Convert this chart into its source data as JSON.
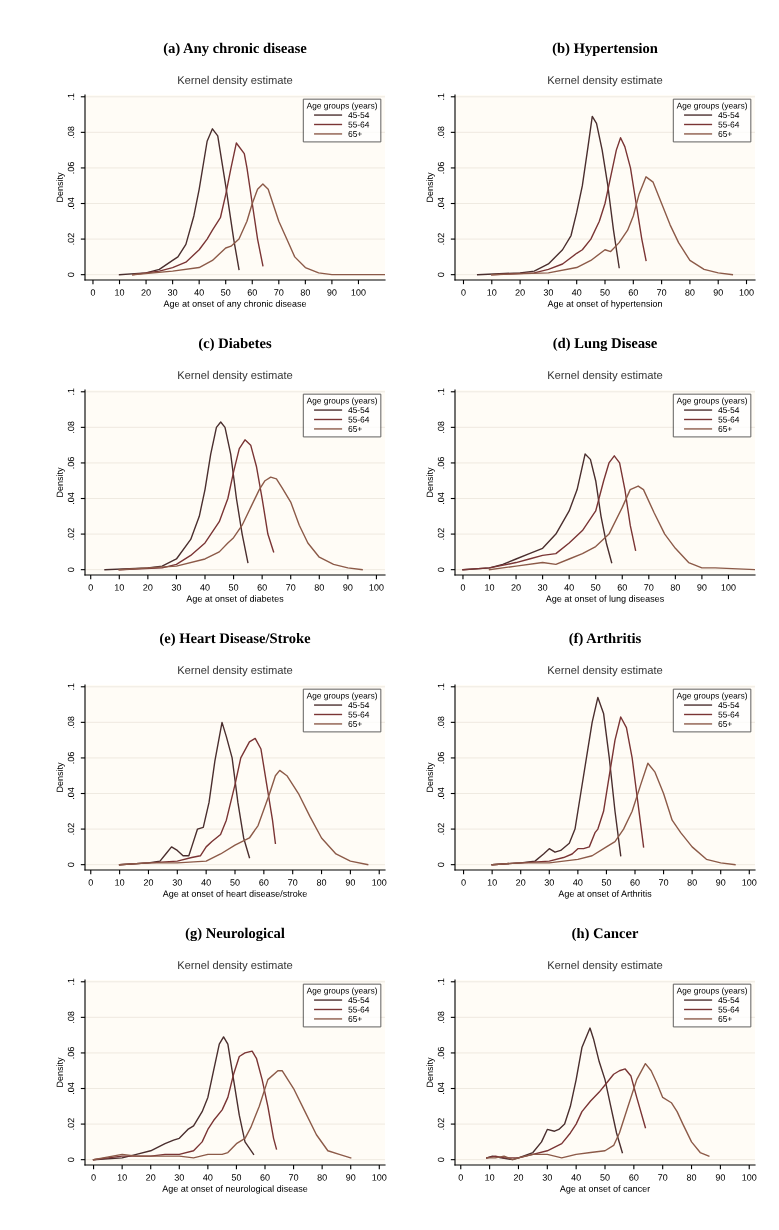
{
  "chart_data": [
    {
      "type": "line",
      "title": "(a) Any chronic disease",
      "subtitle": "Kernel density estimate",
      "xlabel": "Age at onset of any chronic disease",
      "ylabel": "Density",
      "legend_title": "Age groups (years)",
      "legend": "top right",
      "grid": "y",
      "xlim": [
        -3,
        110
      ],
      "xticks": [
        0,
        10,
        20,
        30,
        40,
        50,
        60,
        70,
        80,
        90,
        100
      ],
      "ylim": [
        -0.003,
        0.101
      ],
      "yticks": [
        0,
        {
          "value": 0.02,
          "label": ".02"
        },
        {
          "value": 0.04,
          "label": ".04"
        },
        {
          "value": 0.06,
          "label": ".06"
        },
        {
          "value": 0.08,
          "label": ".08"
        },
        {
          "value": 0.1,
          "label": ".1"
        }
      ],
      "series": [
        {
          "name": "45-54",
          "color": "#4a2e2e",
          "x": [
            10,
            20,
            25,
            30,
            32,
            35,
            38,
            40,
            43,
            45,
            47,
            50,
            53,
            55
          ],
          "values": [
            0,
            0.001,
            0.003,
            0.008,
            0.01,
            0.017,
            0.033,
            0.048,
            0.075,
            0.082,
            0.078,
            0.05,
            0.02,
            0.003
          ]
        },
        {
          "name": "55-64",
          "color": "#7a3434",
          "x": [
            15,
            25,
            30,
            35,
            40,
            43,
            45,
            48,
            50,
            52,
            54,
            57,
            58,
            60,
            62,
            64
          ],
          "values": [
            0,
            0.002,
            0.004,
            0.007,
            0.014,
            0.02,
            0.025,
            0.032,
            0.045,
            0.06,
            0.074,
            0.068,
            0.06,
            0.04,
            0.02,
            0.005
          ]
        },
        {
          "name": "65+",
          "color": "#8c5a48",
          "x": [
            15,
            30,
            40,
            45,
            50,
            52,
            55,
            58,
            60,
            62,
            64,
            66,
            70,
            73,
            76,
            80,
            85,
            90,
            110
          ],
          "values": [
            0,
            0.002,
            0.004,
            0.008,
            0.015,
            0.016,
            0.02,
            0.03,
            0.04,
            0.048,
            0.051,
            0.048,
            0.03,
            0.02,
            0.01,
            0.004,
            0.001,
            0,
            0
          ]
        }
      ]
    },
    {
      "type": "line",
      "title": "(b) Hypertension",
      "subtitle": "Kernel density estimate",
      "xlabel": "Age at onset of hypertension",
      "ylabel": "Density",
      "legend_title": "Age groups (years)",
      "legend": "top right",
      "grid": "y",
      "xlim": [
        -3,
        103
      ],
      "xticks": [
        0,
        10,
        20,
        30,
        40,
        50,
        60,
        70,
        80,
        90,
        100
      ],
      "ylim": [
        -0.003,
        0.101
      ],
      "yticks": [
        0,
        {
          "value": 0.02,
          "label": ".02"
        },
        {
          "value": 0.04,
          "label": ".04"
        },
        {
          "value": 0.06,
          "label": ".06"
        },
        {
          "value": 0.08,
          "label": ".08"
        },
        {
          "value": 0.1,
          "label": ".1"
        }
      ],
      "series": [
        {
          "name": "45-54",
          "color": "#4a2e2e",
          "x": [
            5,
            20,
            25,
            30,
            35,
            38,
            40,
            42,
            44,
            45.5,
            47,
            49,
            51,
            53,
            55
          ],
          "values": [
            0,
            0.001,
            0.002,
            0.006,
            0.014,
            0.022,
            0.035,
            0.05,
            0.072,
            0.089,
            0.085,
            0.07,
            0.05,
            0.025,
            0.004
          ]
        },
        {
          "name": "55-64",
          "color": "#7a3434",
          "x": [
            10,
            25,
            30,
            35,
            40,
            42,
            45,
            48,
            50,
            52,
            54,
            55.5,
            57,
            59,
            61,
            63,
            64.5
          ],
          "values": [
            0,
            0.001,
            0.003,
            0.006,
            0.012,
            0.014,
            0.02,
            0.03,
            0.04,
            0.055,
            0.07,
            0.077,
            0.072,
            0.06,
            0.04,
            0.02,
            0.008
          ]
        },
        {
          "name": "65+",
          "color": "#8c5a48",
          "x": [
            10,
            30,
            40,
            45,
            50,
            52,
            55,
            58,
            60,
            62,
            64.5,
            67,
            70,
            73,
            76,
            80,
            85,
            90,
            95
          ],
          "values": [
            0,
            0.001,
            0.004,
            0.008,
            0.014,
            0.013,
            0.018,
            0.025,
            0.033,
            0.045,
            0.055,
            0.052,
            0.04,
            0.028,
            0.018,
            0.008,
            0.003,
            0.001,
            0
          ]
        }
      ]
    },
    {
      "type": "line",
      "title": "(c) Diabetes",
      "subtitle": "Kernel density estimate",
      "xlabel": "Age at onset of diabetes",
      "ylabel": "Density",
      "legend_title": "Age groups (years)",
      "legend": "top right",
      "grid": "y",
      "xlim": [
        -2,
        103
      ],
      "xticks": [
        0,
        10,
        20,
        30,
        40,
        50,
        60,
        70,
        80,
        90,
        100
      ],
      "ylim": [
        -0.003,
        0.101
      ],
      "yticks": [
        0,
        {
          "value": 0.02,
          "label": ".02"
        },
        {
          "value": 0.04,
          "label": ".04"
        },
        {
          "value": 0.06,
          "label": ".06"
        },
        {
          "value": 0.08,
          "label": ".08"
        },
        {
          "value": 0.1,
          "label": ".1"
        }
      ],
      "series": [
        {
          "name": "45-54",
          "color": "#4a2e2e",
          "x": [
            5,
            20,
            25,
            30,
            35,
            38,
            40,
            42,
            44,
            45.5,
            47,
            49,
            51,
            53,
            55
          ],
          "values": [
            0,
            0.001,
            0.002,
            0.006,
            0.017,
            0.03,
            0.045,
            0.065,
            0.08,
            0.083,
            0.08,
            0.065,
            0.04,
            0.02,
            0.004
          ]
        },
        {
          "name": "55-64",
          "color": "#7a3434",
          "x": [
            10,
            25,
            30,
            35,
            40,
            45,
            48,
            50,
            52,
            54,
            56,
            58,
            60,
            62,
            64
          ],
          "values": [
            0,
            0.001,
            0.003,
            0.008,
            0.015,
            0.027,
            0.04,
            0.055,
            0.068,
            0.073,
            0.07,
            0.058,
            0.04,
            0.02,
            0.01
          ]
        },
        {
          "name": "65+",
          "color": "#8c5a48",
          "x": [
            10,
            30,
            40,
            45,
            48,
            50,
            53,
            56,
            59,
            61,
            63,
            65,
            67,
            70,
            73,
            76,
            80,
            85,
            90,
            95
          ],
          "values": [
            0,
            0.002,
            0.006,
            0.01,
            0.015,
            0.018,
            0.025,
            0.035,
            0.045,
            0.05,
            0.052,
            0.051,
            0.046,
            0.038,
            0.025,
            0.015,
            0.007,
            0.003,
            0.001,
            0
          ]
        }
      ]
    },
    {
      "type": "line",
      "title": "(d) Lung Disease",
      "subtitle": "Kernel density estimate",
      "xlabel": "Age at onset of lung diseases",
      "ylabel": "Density",
      "legend_title": "Age groups (years)",
      "legend": "top right",
      "grid": "y",
      "xlim": [
        -3,
        110
      ],
      "xticks": [
        0,
        10,
        20,
        30,
        40,
        50,
        60,
        70,
        80,
        90,
        100
      ],
      "ylim": [
        -0.003,
        0.101
      ],
      "yticks": [
        0,
        {
          "value": 0.02,
          "label": ".02"
        },
        {
          "value": 0.04,
          "label": ".04"
        },
        {
          "value": 0.06,
          "label": ".06"
        },
        {
          "value": 0.08,
          "label": ".08"
        },
        {
          "value": 0.1,
          "label": ".1"
        }
      ],
      "series": [
        {
          "name": "45-54",
          "color": "#4a2e2e",
          "x": [
            0,
            10,
            15,
            20,
            25,
            30,
            35,
            40,
            43,
            46,
            48,
            50,
            52,
            54,
            56
          ],
          "values": [
            0,
            0.001,
            0.003,
            0.006,
            0.009,
            0.012,
            0.02,
            0.033,
            0.045,
            0.065,
            0.062,
            0.05,
            0.03,
            0.015,
            0.004
          ]
        },
        {
          "name": "55-64",
          "color": "#7a3434",
          "x": [
            0,
            10,
            20,
            25,
            30,
            35,
            40,
            45,
            50,
            53,
            55,
            57,
            59,
            61,
            63,
            65
          ],
          "values": [
            0,
            0.001,
            0.004,
            0.006,
            0.008,
            0.009,
            0.015,
            0.022,
            0.033,
            0.05,
            0.06,
            0.064,
            0.06,
            0.045,
            0.025,
            0.011
          ]
        },
        {
          "name": "65+",
          "color": "#8c5a48",
          "x": [
            10,
            20,
            30,
            35,
            40,
            45,
            50,
            55,
            60,
            63,
            66,
            68,
            72,
            76,
            80,
            85,
            90,
            95,
            110
          ],
          "values": [
            0,
            0.002,
            0.004,
            0.003,
            0.006,
            0.009,
            0.013,
            0.02,
            0.035,
            0.045,
            0.047,
            0.045,
            0.032,
            0.02,
            0.012,
            0.004,
            0.001,
            0.001,
            0
          ]
        }
      ]
    },
    {
      "type": "line",
      "title": "(e) Heart Disease/Stroke",
      "subtitle": "Kernel density estimate",
      "xlabel": "Age at onset of heart disease/stroke",
      "ylabel": "Density",
      "legend_title": "Age groups (years)",
      "legend": "top right",
      "grid": "y",
      "xlim": [
        -2,
        102
      ],
      "xticks": [
        0,
        10,
        20,
        30,
        40,
        50,
        60,
        70,
        80,
        90,
        100
      ],
      "ylim": [
        -0.003,
        0.101
      ],
      "yticks": [
        0,
        {
          "value": 0.02,
          "label": ".02"
        },
        {
          "value": 0.04,
          "label": ".04"
        },
        {
          "value": 0.06,
          "label": ".06"
        },
        {
          "value": 0.08,
          "label": ".08"
        },
        {
          "value": 0.1,
          "label": ".1"
        }
      ],
      "series": [
        {
          "name": "45-54",
          "color": "#4a2e2e",
          "x": [
            10,
            20,
            24,
            26,
            28,
            30,
            32,
            34,
            35,
            37,
            39,
            41,
            43,
            45.5,
            47,
            49,
            51,
            53,
            55
          ],
          "values": [
            0,
            0.001,
            0.002,
            0.006,
            0.01,
            0.008,
            0.005,
            0.005,
            0.01,
            0.02,
            0.021,
            0.035,
            0.058,
            0.08,
            0.072,
            0.06,
            0.035,
            0.015,
            0.004
          ]
        },
        {
          "name": "55-64",
          "color": "#7a3434",
          "x": [
            10,
            20,
            30,
            35,
            38,
            40,
            42,
            45,
            47,
            50,
            52,
            55,
            57,
            59,
            61,
            63,
            64
          ],
          "values": [
            0,
            0.001,
            0.002,
            0.004,
            0.005,
            0.01,
            0.013,
            0.017,
            0.025,
            0.045,
            0.06,
            0.069,
            0.071,
            0.065,
            0.045,
            0.025,
            0.012
          ]
        },
        {
          "name": "65+",
          "color": "#8c5a48",
          "x": [
            10,
            20,
            30,
            40,
            45,
            50,
            55,
            58,
            62,
            64,
            65.5,
            68,
            72,
            76,
            80,
            85,
            90,
            96
          ],
          "values": [
            0,
            0.001,
            0.001,
            0.002,
            0.006,
            0.011,
            0.015,
            0.022,
            0.04,
            0.05,
            0.053,
            0.05,
            0.04,
            0.027,
            0.015,
            0.006,
            0.002,
            0
          ]
        }
      ]
    },
    {
      "type": "line",
      "title": "(f) Arthritis",
      "subtitle": "Kernel density estimate",
      "xlabel": "Age at onset of Arthritis",
      "ylabel": "Density",
      "legend_title": "Age groups (years)",
      "legend": "top right",
      "grid": "y",
      "xlim": [
        -3,
        102
      ],
      "xticks": [
        0,
        10,
        20,
        30,
        40,
        50,
        60,
        70,
        80,
        90,
        100
      ],
      "ylim": [
        -0.003,
        0.101
      ],
      "yticks": [
        0,
        {
          "value": 0.02,
          "label": ".02"
        },
        {
          "value": 0.04,
          "label": ".04"
        },
        {
          "value": 0.06,
          "label": ".06"
        },
        {
          "value": 0.08,
          "label": ".08"
        },
        {
          "value": 0.1,
          "label": ".1"
        }
      ],
      "series": [
        {
          "name": "45-54",
          "color": "#4a2e2e",
          "x": [
            10,
            20,
            25,
            28,
            30,
            32,
            34,
            37,
            39,
            41,
            43,
            45,
            47,
            49,
            51,
            53,
            55
          ],
          "values": [
            0,
            0.001,
            0.002,
            0.006,
            0.009,
            0.007,
            0.008,
            0.012,
            0.02,
            0.04,
            0.06,
            0.08,
            0.094,
            0.085,
            0.06,
            0.03,
            0.005
          ]
        },
        {
          "name": "55-64",
          "color": "#7a3434",
          "x": [
            10,
            20,
            30,
            35,
            38,
            40,
            42,
            44,
            46,
            47,
            49,
            51,
            53,
            55,
            57,
            59,
            61,
            63
          ],
          "values": [
            0,
            0.001,
            0.002,
            0.004,
            0.006,
            0.009,
            0.009,
            0.01,
            0.018,
            0.02,
            0.03,
            0.05,
            0.07,
            0.083,
            0.077,
            0.06,
            0.035,
            0.01
          ]
        },
        {
          "name": "65+",
          "color": "#8c5a48",
          "x": [
            10,
            20,
            30,
            40,
            45,
            50,
            53,
            56,
            59,
            62,
            64.5,
            67,
            70,
            73,
            76,
            80,
            85,
            90,
            95
          ],
          "values": [
            0,
            0.001,
            0.001,
            0.003,
            0.005,
            0.01,
            0.013,
            0.02,
            0.03,
            0.045,
            0.057,
            0.052,
            0.04,
            0.025,
            0.018,
            0.01,
            0.003,
            0.001,
            0
          ]
        }
      ]
    },
    {
      "type": "line",
      "title": "(g) Neurological",
      "subtitle": "Kernel density estimate",
      "xlabel": "Age at onset of neurological disease",
      "ylabel": "Density",
      "legend_title": "Age groups (years)",
      "legend": "top right",
      "grid": "y",
      "xlim": [
        -3,
        102
      ],
      "xticks": [
        0,
        10,
        20,
        30,
        40,
        50,
        60,
        70,
        80,
        90,
        100
      ],
      "ylim": [
        -0.003,
        0.101
      ],
      "yticks": [
        0,
        {
          "value": 0.02,
          "label": ".02"
        },
        {
          "value": 0.04,
          "label": ".04"
        },
        {
          "value": 0.06,
          "label": ".06"
        },
        {
          "value": 0.08,
          "label": ".08"
        },
        {
          "value": 0.1,
          "label": ".1"
        }
      ],
      "series": [
        {
          "name": "45-54",
          "color": "#4a2e2e",
          "x": [
            0,
            10,
            15,
            20,
            25,
            28,
            30,
            33,
            35,
            38,
            40,
            42,
            44,
            45.5,
            47,
            49,
            51,
            53,
            56
          ],
          "values": [
            0,
            0.001,
            0.003,
            0.005,
            0.009,
            0.011,
            0.012,
            0.017,
            0.019,
            0.027,
            0.035,
            0.05,
            0.065,
            0.069,
            0.065,
            0.045,
            0.025,
            0.01,
            0.003
          ]
        },
        {
          "name": "55-64",
          "color": "#7a3434",
          "x": [
            0,
            10,
            15,
            20,
            25,
            30,
            35,
            38,
            40,
            42,
            45,
            47,
            49,
            51,
            53,
            55.5,
            57,
            59,
            61,
            63,
            64
          ],
          "values": [
            0,
            0.002,
            0.002,
            0.002,
            0.003,
            0.003,
            0.005,
            0.01,
            0.017,
            0.022,
            0.028,
            0.035,
            0.048,
            0.058,
            0.06,
            0.061,
            0.057,
            0.045,
            0.03,
            0.012,
            0.006
          ]
        },
        {
          "name": "65+",
          "color": "#8c5a48",
          "x": [
            0,
            10,
            15,
            20,
            25,
            30,
            35,
            40,
            45,
            47,
            50,
            53,
            55,
            58,
            61,
            64.5,
            66,
            70,
            74,
            78,
            82,
            86,
            90
          ],
          "values": [
            0,
            0.003,
            0.002,
            0.002,
            0.002,
            0.002,
            0.001,
            0.003,
            0.003,
            0.004,
            0.009,
            0.012,
            0.018,
            0.03,
            0.045,
            0.05,
            0.05,
            0.04,
            0.027,
            0.014,
            0.005,
            0.003,
            0.001
          ]
        }
      ]
    },
    {
      "type": "line",
      "title": "(h) Cancer",
      "subtitle": "Kernel density estimate",
      "xlabel": "Age at onset of cancer",
      "ylabel": "Density",
      "legend_title": "Age groups (years)",
      "legend": "top right",
      "grid": "y",
      "xlim": [
        -2,
        102
      ],
      "xticks": [
        0,
        10,
        20,
        30,
        40,
        50,
        60,
        70,
        80,
        90,
        100
      ],
      "ylim": [
        -0.003,
        0.101
      ],
      "yticks": [
        0,
        {
          "value": 0.02,
          "label": ".02"
        },
        {
          "value": 0.04,
          "label": ".04"
        },
        {
          "value": 0.06,
          "label": ".06"
        },
        {
          "value": 0.08,
          "label": ".08"
        },
        {
          "value": 0.1,
          "label": ".1"
        }
      ],
      "series": [
        {
          "name": "45-54",
          "color": "#4a2e2e",
          "x": [
            9,
            11,
            14,
            18,
            20,
            25,
            28,
            30,
            32.5,
            34,
            36,
            38,
            40,
            42,
            44.8,
            46,
            48,
            50,
            52,
            54,
            56
          ],
          "values": [
            0.001,
            0.002,
            0.001,
            0,
            0.001,
            0.004,
            0.01,
            0.017,
            0.016,
            0.017,
            0.02,
            0.03,
            0.045,
            0.063,
            0.074,
            0.068,
            0.055,
            0.045,
            0.03,
            0.015,
            0.004
          ]
        },
        {
          "name": "55-64",
          "color": "#7a3434",
          "x": [
            9,
            12,
            15,
            20,
            25,
            30,
            35,
            38,
            40,
            42,
            45,
            48,
            50,
            53,
            55,
            57,
            59,
            61,
            64
          ],
          "values": [
            0.001,
            0.002,
            0.001,
            0.001,
            0.003,
            0.005,
            0.009,
            0.015,
            0.02,
            0.027,
            0.033,
            0.038,
            0.042,
            0.048,
            0.05,
            0.051,
            0.047,
            0.035,
            0.018
          ]
        },
        {
          "name": "65+",
          "color": "#8c5a48",
          "x": [
            9,
            12,
            15,
            18,
            20,
            25,
            30,
            35,
            40,
            45,
            50,
            53,
            55,
            58,
            61,
            64,
            66,
            68,
            70,
            73,
            75,
            77,
            80,
            83,
            86
          ],
          "values": [
            0.001,
            0.001,
            0.002,
            0,
            0.001,
            0.003,
            0.003,
            0.001,
            0.003,
            0.004,
            0.005,
            0.008,
            0.015,
            0.03,
            0.045,
            0.054,
            0.05,
            0.043,
            0.035,
            0.032,
            0.027,
            0.02,
            0.01,
            0.004,
            0.002
          ]
        }
      ]
    }
  ]
}
